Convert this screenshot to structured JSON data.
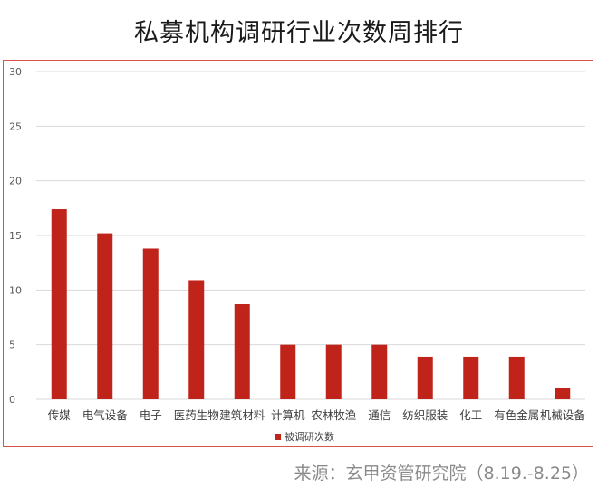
{
  "title": "私募机构调研行业次数周排行",
  "source": "来源：玄甲资管研究院（8.19.-8.25）",
  "colors": {
    "bar": "#c0231a",
    "grid": "#d9d9d9",
    "frame": "#d9534f"
  },
  "chart_data": {
    "type": "bar",
    "title": "私募机构调研行业次数周排行",
    "categories": [
      "传媒",
      "电气设备",
      "电子",
      "医药生物",
      "建筑材料",
      "计算机",
      "农林牧渔",
      "通信",
      "纺织服装",
      "化工",
      "有色金属",
      "机械设备"
    ],
    "series": [
      {
        "name": "被调研次数",
        "values": [
          17.4,
          15.2,
          13.8,
          10.9,
          8.7,
          5,
          5,
          5,
          3.9,
          3.9,
          3.9,
          1
        ]
      }
    ],
    "yticks": [
      0,
      5,
      10,
      15,
      20,
      25,
      30
    ],
    "ylim": [
      0,
      30
    ],
    "xlabel": "",
    "ylabel": "",
    "grid": true,
    "legend": "bottom-center"
  }
}
